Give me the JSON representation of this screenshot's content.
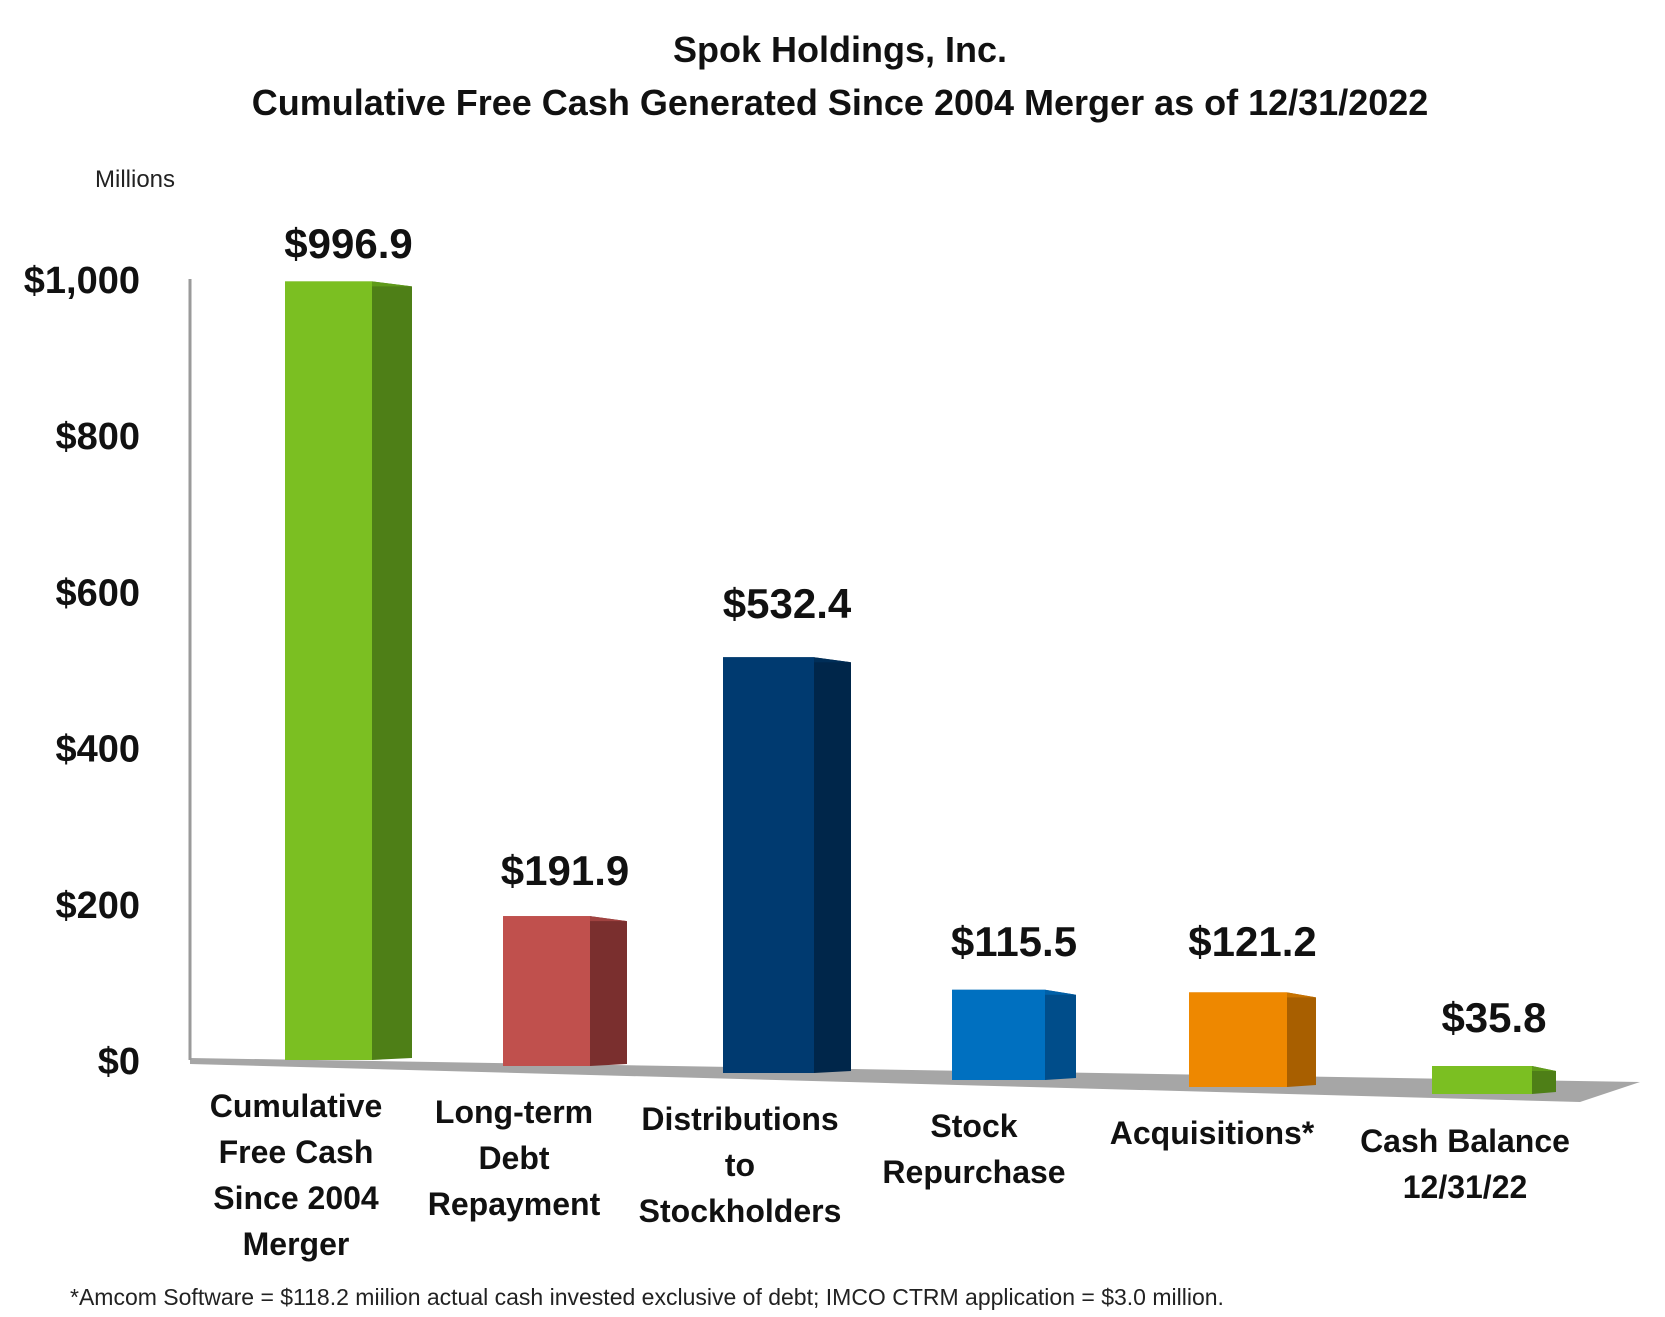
{
  "chart_data": {
    "type": "bar",
    "title": "Spok Holdings, Inc.",
    "subtitle": "Cumulative Free Cash Generated Since 2004 Merger as of 12/31/2022",
    "unit_label": "Millions",
    "ylim": [
      0,
      1000
    ],
    "y_ticks": [
      {
        "value": 0,
        "label": "$0"
      },
      {
        "value": 200,
        "label": "$200"
      },
      {
        "value": 400,
        "label": "$400"
      },
      {
        "value": 600,
        "label": "$600"
      },
      {
        "value": 800,
        "label": "$800"
      },
      {
        "value": 1000,
        "label": "$1,000"
      }
    ],
    "grid": false,
    "categories": [
      [
        "Cumulative",
        "Free Cash",
        "Since 2004",
        "Merger"
      ],
      [
        "Long-term",
        "Debt",
        "Repayment"
      ],
      [
        "Distributions",
        "to",
        "Stockholders"
      ],
      [
        "Stock",
        "Repurchase"
      ],
      [
        "Acquisitions*"
      ],
      [
        "Cash Balance",
        "12/31/22"
      ]
    ],
    "values": [
      996.9,
      191.9,
      532.4,
      115.5,
      121.2,
      35.8
    ],
    "value_labels": [
      "$996.9",
      "$191.9",
      "$532.4",
      "$115.5",
      "$121.2",
      "$35.8"
    ],
    "colors": {
      "front": [
        "#7bbf22",
        "#c0504d",
        "#003a70",
        "#0070c0",
        "#ee8800",
        "#7bbf22"
      ],
      "side": [
        "#4e7f17",
        "#7a2f2e",
        "#00264a",
        "#004d8a",
        "#a85f00",
        "#4e7f17"
      ],
      "top": [
        "#5f9a1a",
        "#a04240",
        "#002e58",
        "#0060a8",
        "#c77200",
        "#5f9a1a"
      ]
    },
    "footnote": "*Amcom Software = $118.2 miilion actual cash invested exclusive of debt; IMCO CTRM application = $3.0 million."
  }
}
